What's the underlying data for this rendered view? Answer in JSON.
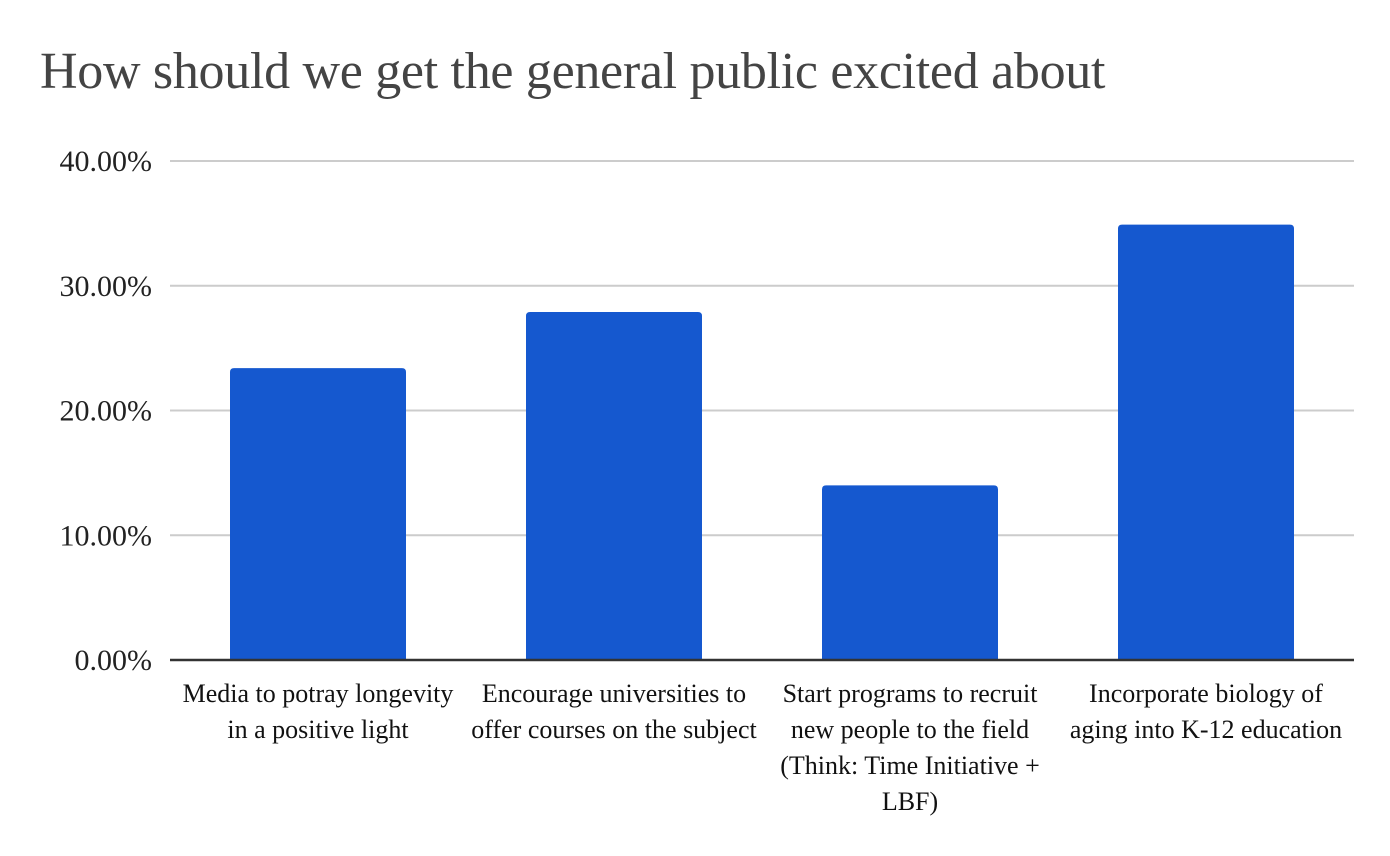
{
  "chart_data": {
    "type": "bar",
    "title": "How should we get the general public excited about",
    "categories": [
      "Media to potray longevity in a positive light",
      "Encourage universities to offer courses on the subject",
      "Start programs to recruit new people to the field (Think: Time Initiative + LBF)",
      "Incorporate biology of aging into K-12 education"
    ],
    "values": [
      23.4,
      27.9,
      14.0,
      34.9
    ],
    "yticks": [
      "0.00%",
      "10.00%",
      "20.00%",
      "30.00%",
      "40.00%"
    ],
    "ylim": [
      0,
      40
    ],
    "grid": true,
    "legend": "none",
    "bar_color": "#1558CF",
    "grid_color": "#CCCCCC",
    "axis_color": "#333333"
  }
}
